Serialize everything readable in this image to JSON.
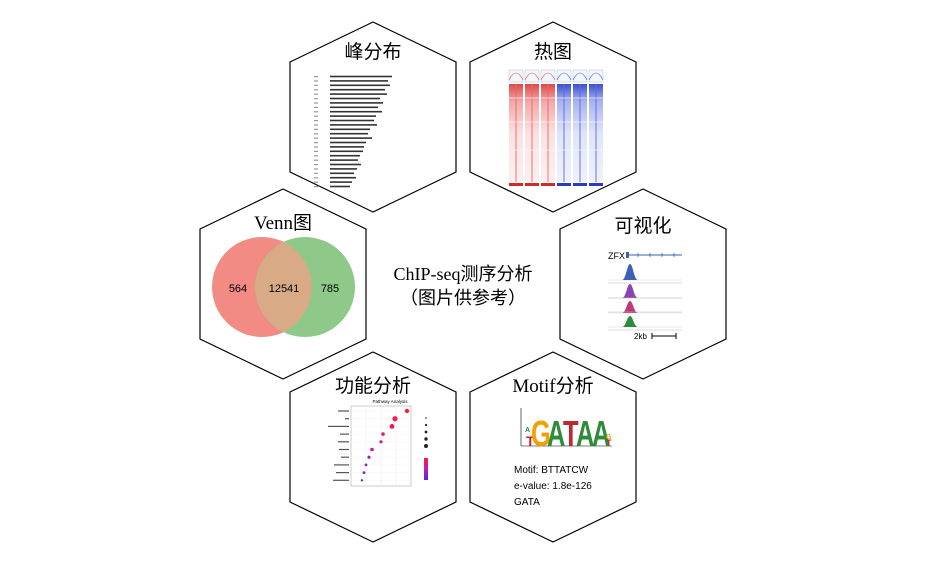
{
  "center": {
    "line1": "ChIP-seq测序分析",
    "line2": "（图片供参考）"
  },
  "panels": {
    "peak": {
      "title": "峰分布"
    },
    "heatmap": {
      "title": "热图"
    },
    "venn": {
      "title": "Venn图",
      "left_value": "564",
      "middle_value": "12541",
      "right_value": "785",
      "left_color": "#f28b84",
      "right_color": "#8ec98a",
      "overlap_color": "#d8ab86"
    },
    "viz": {
      "title": "可视化",
      "gene_label": "ZFX",
      "scale_label": "2kb",
      "track_colors": [
        "#3d5fb8",
        "#8e44ad",
        "#c03a7a",
        "#2e8b3a"
      ]
    },
    "func": {
      "title": "功能分析",
      "chart_title": "Pathway Analysis"
    },
    "motif": {
      "title": "Motif分析",
      "letters": "GATAA",
      "motif_line": "Motif: BTTATCW",
      "evalue_line": "e-value: 1.8e-126",
      "factor_line": "GATA"
    }
  }
}
